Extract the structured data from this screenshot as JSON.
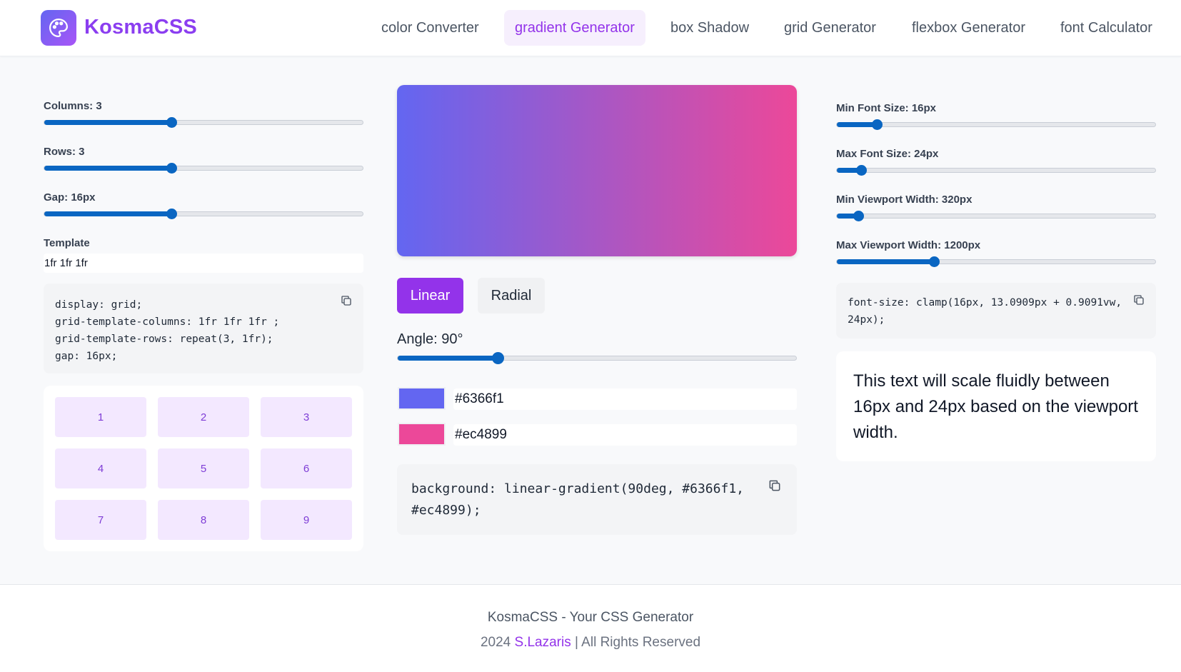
{
  "header": {
    "brand": "KosmaCSS",
    "logo_icon": "palette-icon",
    "nav": [
      {
        "label": "color Converter",
        "active": false
      },
      {
        "label": "gradient Generator",
        "active": true
      },
      {
        "label": "box Shadow",
        "active": false
      },
      {
        "label": "grid Generator",
        "active": false
      },
      {
        "label": "flexbox Generator",
        "active": false
      },
      {
        "label": "font Calculator",
        "active": false
      }
    ]
  },
  "grid_generator": {
    "columns": {
      "label": "Columns: 3",
      "value": 3,
      "min": 1,
      "max": 6
    },
    "rows": {
      "label": "Rows: 3",
      "value": 3,
      "min": 1,
      "max": 6
    },
    "gap": {
      "label": "Gap: 16px",
      "value": 16,
      "min": 0,
      "max": 40
    },
    "template_label": "Template",
    "template_value": "1fr 1fr 1fr",
    "code_lines": [
      "display: grid;",
      "grid-template-columns: 1fr 1fr 1fr ;",
      "grid-template-rows: repeat(3, 1fr);",
      "gap: 16px;"
    ],
    "cells": [
      "1",
      "2",
      "3",
      "4",
      "5",
      "6",
      "7",
      "8",
      "9"
    ]
  },
  "gradient_generator": {
    "colors": [
      "#6366f1",
      "#ec4899"
    ],
    "types": {
      "linear": "Linear",
      "radial": "Radial",
      "selected": "linear"
    },
    "angle_label": "Angle: 90°",
    "angle": {
      "value": 90,
      "min": 0,
      "max": 360
    },
    "color1": "#6366f1",
    "color2": "#ec4899",
    "code_lines": [
      "background: linear-gradient(90deg, #6366f1,",
      "#ec4899);"
    ]
  },
  "font_calculator": {
    "min_font": {
      "label": "Min Font Size: 16px",
      "value": 16,
      "min": 8,
      "max": 72
    },
    "max_font": {
      "label": "Max Font Size: 24px",
      "value": 24,
      "min": 16,
      "max": 120
    },
    "min_viewport": {
      "label": "Min Viewport Width: 320px",
      "value": 320,
      "min": 200,
      "max": 2000
    },
    "max_viewport": {
      "label": "Max Viewport Width: 1200px",
      "value": 1200,
      "min": 320,
      "max": 3200
    },
    "code_lines": [
      "font-size: clamp(16px, 13.0909px + 0.9091vw,",
      "24px);"
    ],
    "preview_text": "This text will scale fluidly between 16px and 24px based on the viewport width."
  },
  "footer": {
    "line1": "KosmaCSS - Your CSS Generator",
    "year": "2024",
    "author": "S.Lazaris",
    "rights": "| All Rights Reserved"
  }
}
